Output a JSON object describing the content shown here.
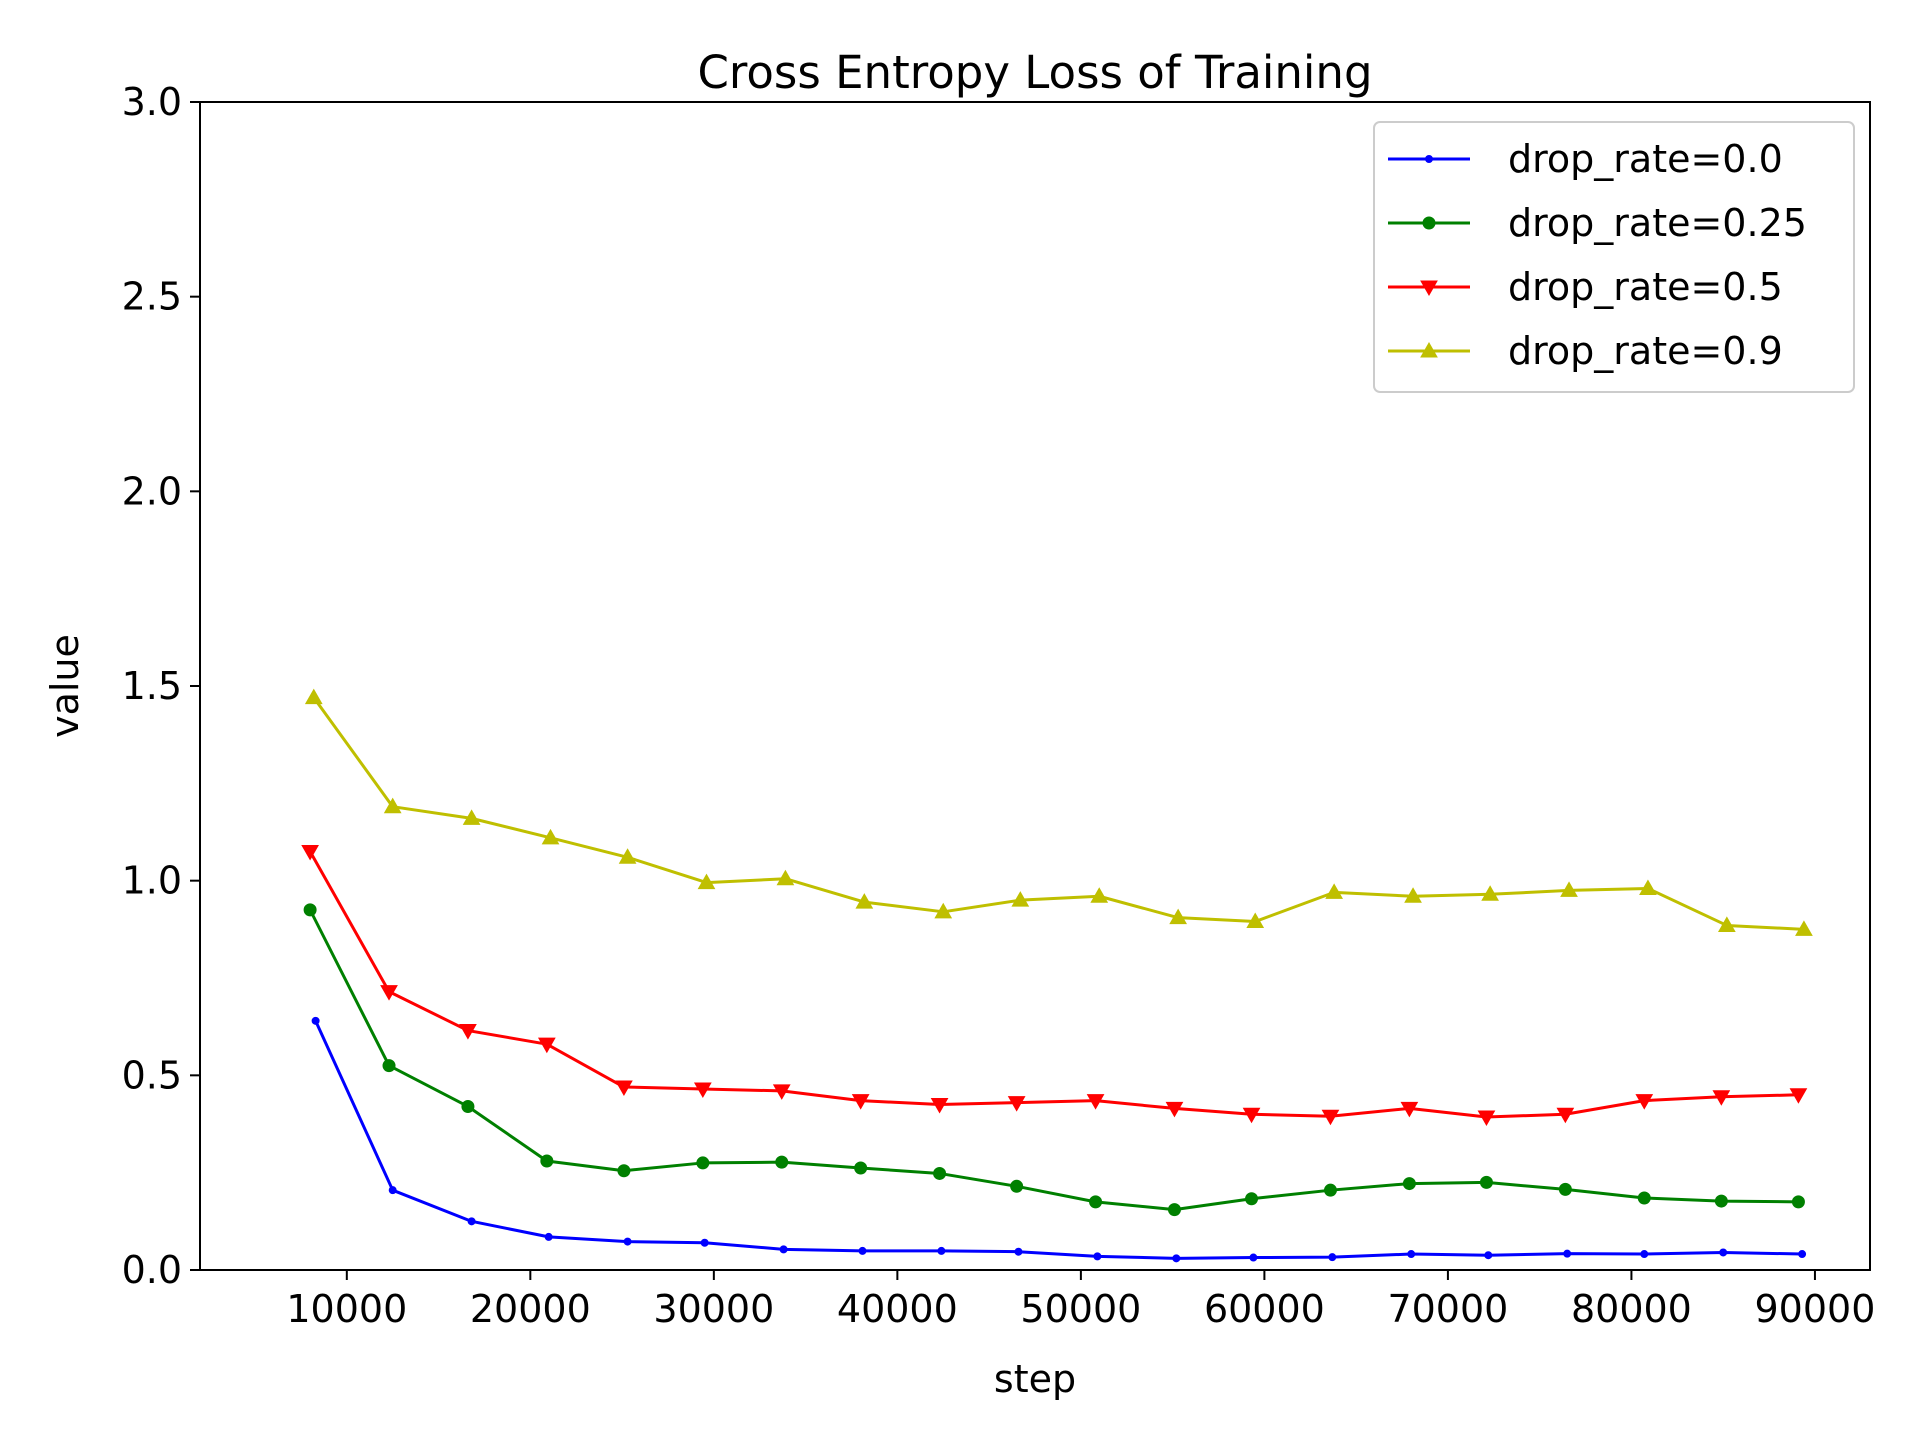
{
  "chart_data": {
    "type": "line",
    "title": "Cross Entropy Loss of Training",
    "xlabel": "step",
    "ylabel": "value",
    "xlim": [
      2000,
      93000
    ],
    "ylim": [
      0,
      3.0
    ],
    "xticks": [
      10000,
      20000,
      30000,
      40000,
      50000,
      60000,
      70000,
      80000,
      90000
    ],
    "yticks": [
      0.0,
      0.5,
      1.0,
      1.5,
      2.0,
      2.5,
      3.0
    ],
    "xtick_labels": [
      "10000",
      "20000",
      "30000",
      "40000",
      "50000",
      "60000",
      "70000",
      "80000",
      "90000"
    ],
    "ytick_labels": [
      "0.0",
      "0.5",
      "1.0",
      "1.5",
      "2.0",
      "2.5",
      "3.0"
    ],
    "grid": false,
    "legend_position": "top-right",
    "series": [
      {
        "name": "drop_rate=0.0",
        "color": "#0000ff",
        "marker": "point",
        "x": [
          8300,
          12500,
          16800,
          21000,
          25300,
          29500,
          33800,
          38100,
          42400,
          46600,
          50900,
          55200,
          59400,
          63700,
          68000,
          72200,
          76500,
          80700,
          85000,
          89300
        ],
        "y": [
          0.64,
          0.205,
          0.125,
          0.085,
          0.073,
          0.07,
          0.053,
          0.049,
          0.049,
          0.047,
          0.035,
          0.03,
          0.032,
          0.033,
          0.041,
          0.038,
          0.042,
          0.041,
          0.045,
          0.041
        ]
      },
      {
        "name": "drop_rate=0.25",
        "color": "#008000",
        "marker": "circle",
        "x": [
          8000,
          12300,
          16600,
          20900,
          25100,
          29400,
          33700,
          38000,
          42300,
          46500,
          50800,
          55100,
          59300,
          63600,
          67900,
          72100,
          76400,
          80700,
          84900,
          89100
        ],
        "y": [
          0.925,
          0.525,
          0.42,
          0.28,
          0.255,
          0.275,
          0.277,
          0.262,
          0.248,
          0.215,
          0.175,
          0.155,
          0.183,
          0.205,
          0.222,
          0.225,
          0.207,
          0.185,
          0.177,
          0.175
        ]
      },
      {
        "name": "drop_rate=0.5",
        "color": "#ff0000",
        "marker": "triangle-down",
        "x": [
          8000,
          12300,
          16600,
          20900,
          25100,
          29400,
          33700,
          38000,
          42300,
          46500,
          50800,
          55100,
          59300,
          63600,
          67900,
          72100,
          76400,
          80700,
          84900,
          89100
        ],
        "y": [
          1.075,
          0.715,
          0.615,
          0.58,
          0.47,
          0.465,
          0.46,
          0.435,
          0.425,
          0.43,
          0.435,
          0.415,
          0.4,
          0.395,
          0.415,
          0.393,
          0.4,
          0.435,
          0.445,
          0.45
        ]
      },
      {
        "name": "drop_rate=0.9",
        "color": "#bfbf00",
        "marker": "triangle-up",
        "x": [
          8200,
          12500,
          16800,
          21100,
          25300,
          29600,
          33900,
          38200,
          42500,
          46700,
          51000,
          55300,
          59500,
          63800,
          68100,
          72300,
          76600,
          80900,
          85200,
          89400
        ],
        "y": [
          1.47,
          1.19,
          1.16,
          1.11,
          1.06,
          0.995,
          1.005,
          0.945,
          0.92,
          0.95,
          0.96,
          0.905,
          0.895,
          0.97,
          0.96,
          0.965,
          0.975,
          0.98,
          0.885,
          0.875
        ]
      }
    ]
  }
}
